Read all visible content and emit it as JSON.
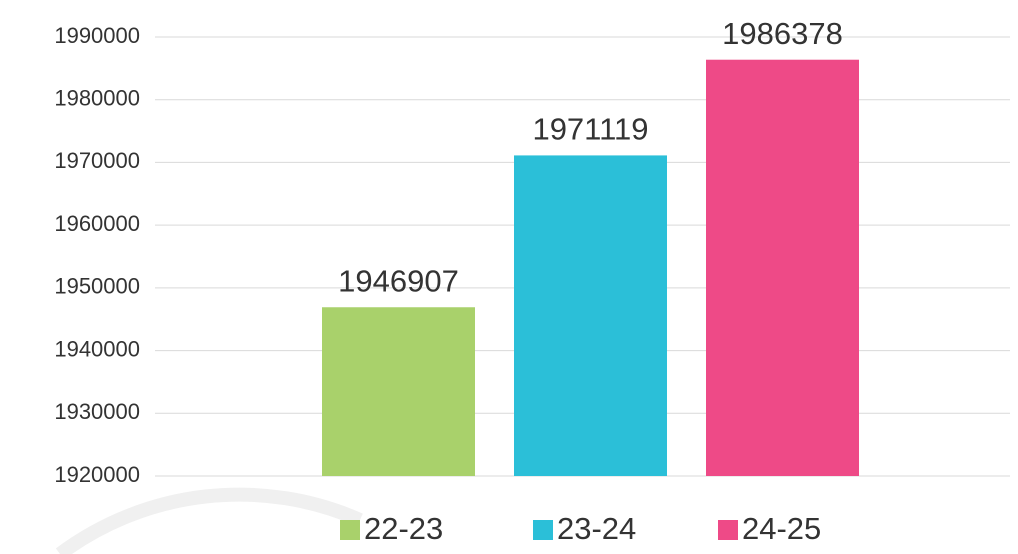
{
  "chart_data": {
    "type": "bar",
    "categories": [
      null
    ],
    "series": [
      {
        "name": "22-23",
        "color": "#a9d16b",
        "values": [
          1946907
        ]
      },
      {
        "name": "23-24",
        "color": "#2bbfd8",
        "values": [
          1971119
        ]
      },
      {
        "name": "24-25",
        "color": "#ee4a87",
        "values": [
          1986378
        ]
      }
    ],
    "ylim": [
      1920000,
      1990000
    ],
    "yticks": [
      1920000,
      1930000,
      1940000,
      1950000,
      1960000,
      1970000,
      1980000,
      1990000
    ],
    "grid": true,
    "legend": "bottom"
  }
}
